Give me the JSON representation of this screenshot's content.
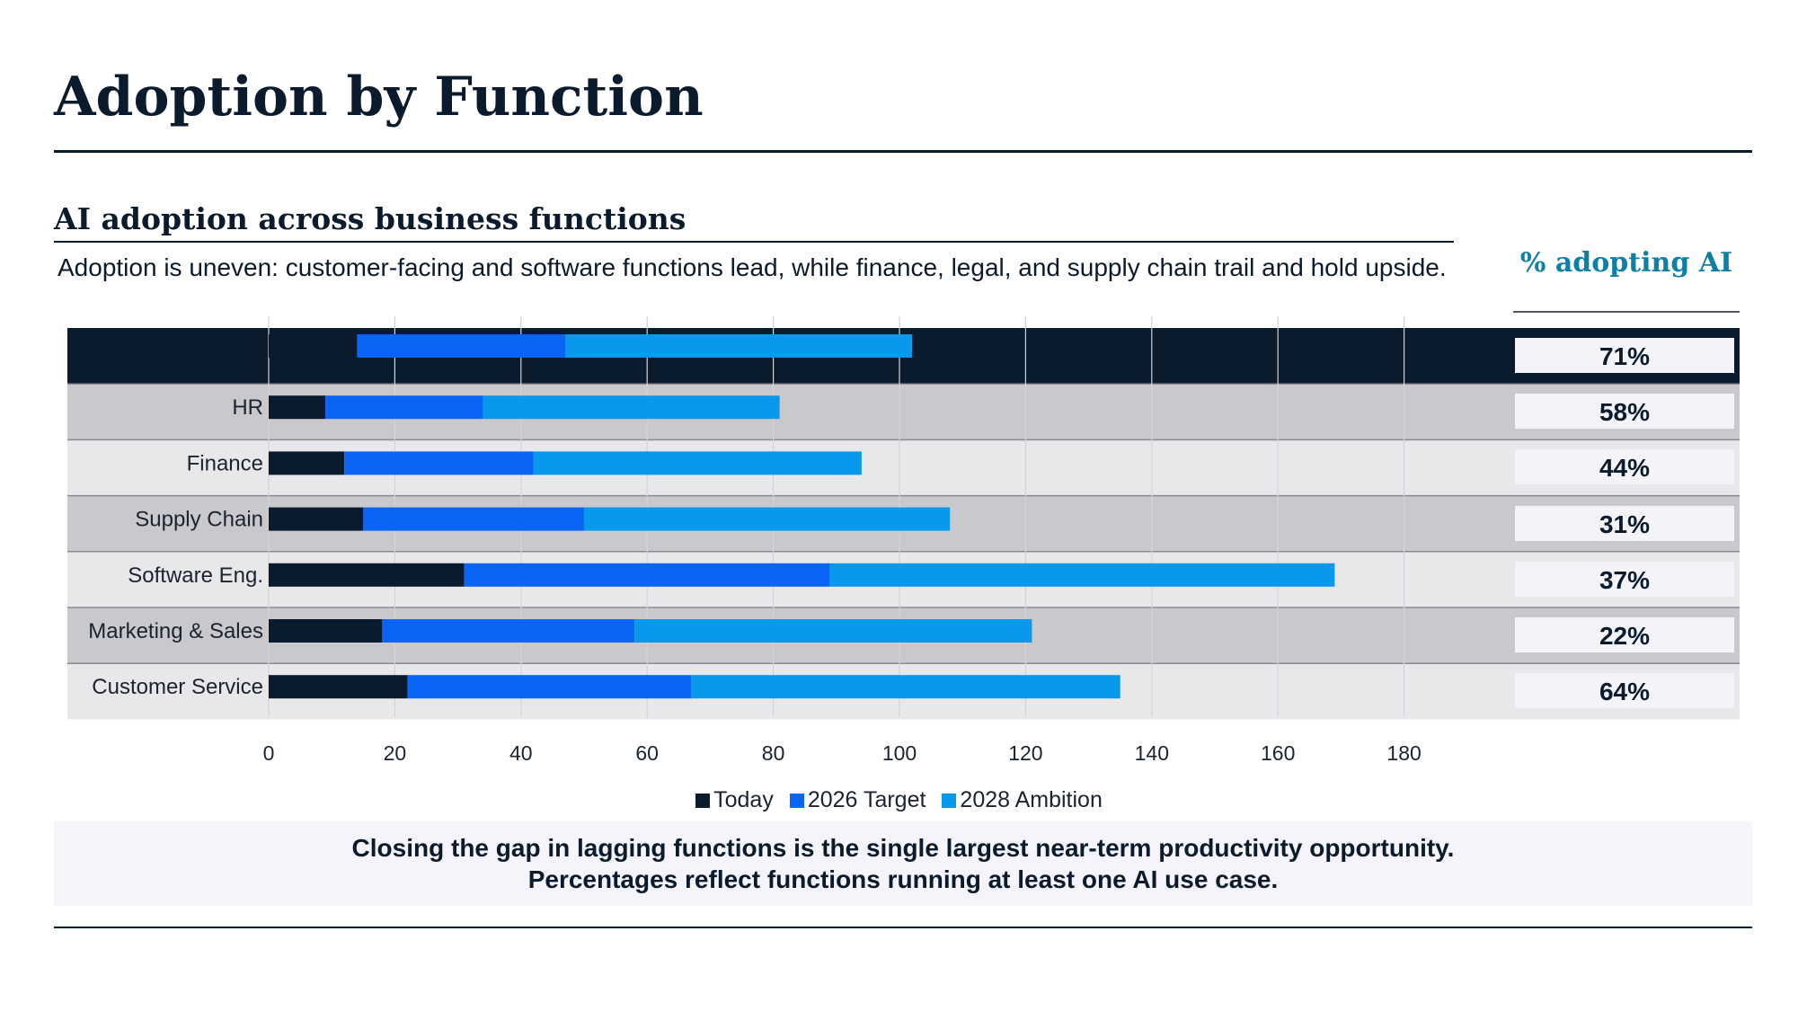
{
  "page": {
    "title": "Adoption by Function",
    "subtitle": "AI adoption across business functions",
    "description": "Adoption is uneven: customer-facing and software functions lead, while finance, legal, and supply chain trail and hold upside.",
    "side_header": "% adopting AI",
    "note_lines": [
      "Closing the gap in lagging functions is the single largest near-term productivity opportunity.",
      "Percentages reflect functions running at least one AI use case."
    ]
  },
  "colors": {
    "today": "#0b1b2e",
    "target_2026": "#0a64f5",
    "ambition_2028": "#0898ec",
    "row_highlight": "#0b1b2e",
    "row_dark": "#c9c8cd",
    "row_light": "#e8e8ea"
  },
  "chart_data": {
    "type": "bar",
    "orientation": "horizontal",
    "stacked": true,
    "categories": [
      "",
      "HR",
      "Finance",
      "Supply Chain",
      "Software Eng.",
      "Marketing & Sales",
      "Customer Service"
    ],
    "series": [
      {
        "name": "Today",
        "values": [
          14,
          9,
          12,
          15,
          31,
          18,
          22
        ]
      },
      {
        "name": "2026 Target",
        "values": [
          33,
          25,
          30,
          35,
          58,
          40,
          45
        ]
      },
      {
        "name": "2028 Ambition",
        "values": [
          55,
          47,
          52,
          58,
          80,
          63,
          68
        ]
      }
    ],
    "xlim": [
      0,
      180
    ],
    "xticks": [
      "0",
      "20",
      "40",
      "60",
      "80",
      "100",
      "120",
      "140",
      "160",
      "180"
    ],
    "grid": true,
    "legend_position": "bottom",
    "adoption_pct": [
      "71%",
      "58%",
      "44%",
      "31%",
      "37%",
      "22%",
      "64%"
    ]
  }
}
